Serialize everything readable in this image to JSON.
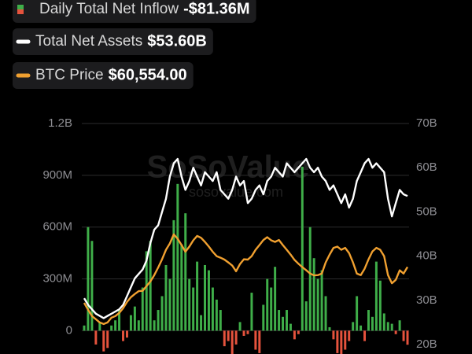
{
  "chart_data": {
    "type": "bar-line",
    "watermark": "SoSoValue",
    "watermark_sub": "sosovalue.com",
    "ylim": [
      -135,
      1200
    ],
    "yticks": [
      {
        "value": 0,
        "label": "0"
      },
      {
        "value": 300,
        "label": "300M"
      },
      {
        "value": 600,
        "label": "600M"
      },
      {
        "value": 900,
        "label": "900M"
      },
      {
        "value": 1200,
        "label": "1.2B"
      }
    ],
    "y2lim": [
      17.9,
      70
    ],
    "y2ticks": [
      {
        "value": 20,
        "label": "20B"
      },
      {
        "value": 30,
        "label": "30B"
      },
      {
        "value": 40,
        "label": "40B"
      },
      {
        "value": 50,
        "label": "50B"
      },
      {
        "value": 60,
        "label": "60B"
      },
      {
        "value": 70,
        "label": "70B"
      }
    ],
    "y3lim": [
      33000,
      106000
    ],
    "grid": true,
    "series": [
      {
        "name": "Daily Total Net Inflow",
        "current_label": "-$81.36M",
        "kind": "bar",
        "axis": "y",
        "color": "#3fae49",
        "negative_color": "#e5533d",
        "values": [
          30,
          600,
          520,
          -80,
          50,
          -120,
          -100,
          30,
          60,
          120,
          -60,
          -40,
          90,
          140,
          60,
          250,
          460,
          520,
          60,
          120,
          200,
          380,
          300,
          640,
          850,
          500,
          680,
          300,
          250,
          400,
          90,
          380,
          350,
          250,
          180,
          120,
          -90,
          -60,
          -140,
          -80,
          50,
          -30,
          -20,
          220,
          -110,
          -130,
          150,
          300,
          250,
          370,
          120,
          80,
          120,
          40,
          -50,
          -20,
          950,
          170,
          600,
          420,
          300,
          350,
          200,
          20,
          -50,
          -130,
          -140,
          -110,
          -60,
          50,
          200,
          30,
          -60,
          120,
          80,
          400,
          290,
          100,
          50,
          40,
          -20,
          60,
          -60,
          -81.36
        ]
      },
      {
        "name": "Total Net Assets",
        "current_label": "$53.60B",
        "kind": "line",
        "axis": "y2",
        "color": "#ffffff",
        "values": [
          30.5,
          29,
          28,
          27,
          26.5,
          26,
          26.5,
          27,
          27.5,
          28,
          29,
          31,
          33,
          35,
          36,
          37,
          39,
          43,
          46,
          47,
          50,
          53,
          58,
          61,
          62,
          58,
          55,
          57,
          60,
          58,
          56,
          59,
          58,
          57,
          59,
          55,
          54,
          53,
          55,
          58,
          56,
          57,
          52,
          53,
          55,
          56,
          54,
          57,
          58,
          60,
          59,
          58,
          61,
          60,
          59,
          60,
          61,
          62,
          60,
          59,
          60,
          58,
          57,
          55,
          56,
          54,
          52,
          54,
          51,
          53,
          57,
          59,
          61,
          62,
          60,
          61,
          60,
          59,
          53,
          49,
          52,
          55,
          54,
          53.6
        ]
      },
      {
        "name": "BTC Price",
        "current_label": "$60,554.00",
        "kind": "line",
        "axis": "y3",
        "color": "#f0a030",
        "values": [
          49200,
          47000,
          45000,
          44000,
          43000,
          42500,
          43000,
          44500,
          45000,
          46000,
          47500,
          49500,
          51000,
          52000,
          52900,
          53000,
          54500,
          56000,
          58000,
          60400,
          63000,
          66000,
          68000,
          70900,
          69500,
          67500,
          65400,
          67000,
          69000,
          70400,
          69800,
          68500,
          67000,
          65400,
          64000,
          63500,
          62900,
          62000,
          61000,
          59200,
          61500,
          63000,
          62900,
          64000,
          66000,
          67500,
          69100,
          70000,
          69000,
          68500,
          69100,
          67500,
          66000,
          64500,
          62800,
          61600,
          60500,
          59500,
          58500,
          57900,
          58000,
          58500,
          62000,
          64500,
          66600,
          67000,
          66000,
          66600,
          65000,
          62000,
          58500,
          58000,
          60000,
          63000,
          65500,
          66600,
          66000,
          64000,
          58000,
          55400,
          56500,
          59500,
          58500,
          60554
        ]
      }
    ]
  }
}
